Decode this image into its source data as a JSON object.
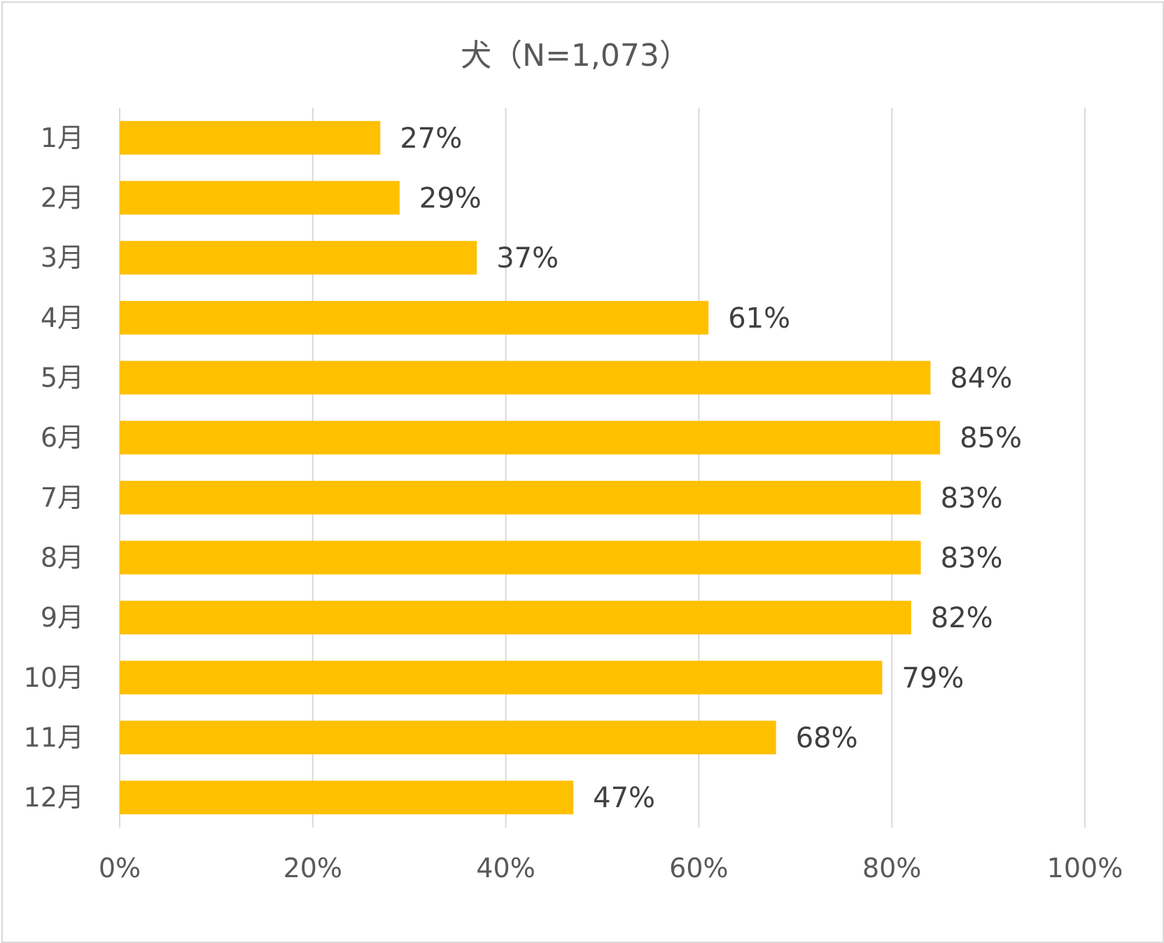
{
  "chart_data": {
    "type": "bar",
    "orientation": "horizontal",
    "title": "犬（N=1,073）",
    "categories": [
      "1月",
      "2月",
      "3月",
      "4月",
      "5月",
      "6月",
      "7月",
      "8月",
      "9月",
      "10月",
      "11月",
      "12月"
    ],
    "values": [
      27,
      29,
      37,
      61,
      84,
      85,
      83,
      83,
      82,
      79,
      68,
      47
    ],
    "data_labels": [
      "27%",
      "29%",
      "37%",
      "61%",
      "84%",
      "85%",
      "83%",
      "83%",
      "82%",
      "79%",
      "68%",
      "47%"
    ],
    "xticks": [
      0,
      20,
      40,
      60,
      80,
      100
    ],
    "xtick_labels": [
      "0%",
      "20%",
      "40%",
      "60%",
      "80%",
      "100%"
    ],
    "xlim": [
      0,
      100
    ],
    "grid": true,
    "legend": "none",
    "colors": {
      "bar": "#ffc000",
      "grid": "#d9d9d9",
      "text": "#595959",
      "data_label": "#404040"
    }
  }
}
